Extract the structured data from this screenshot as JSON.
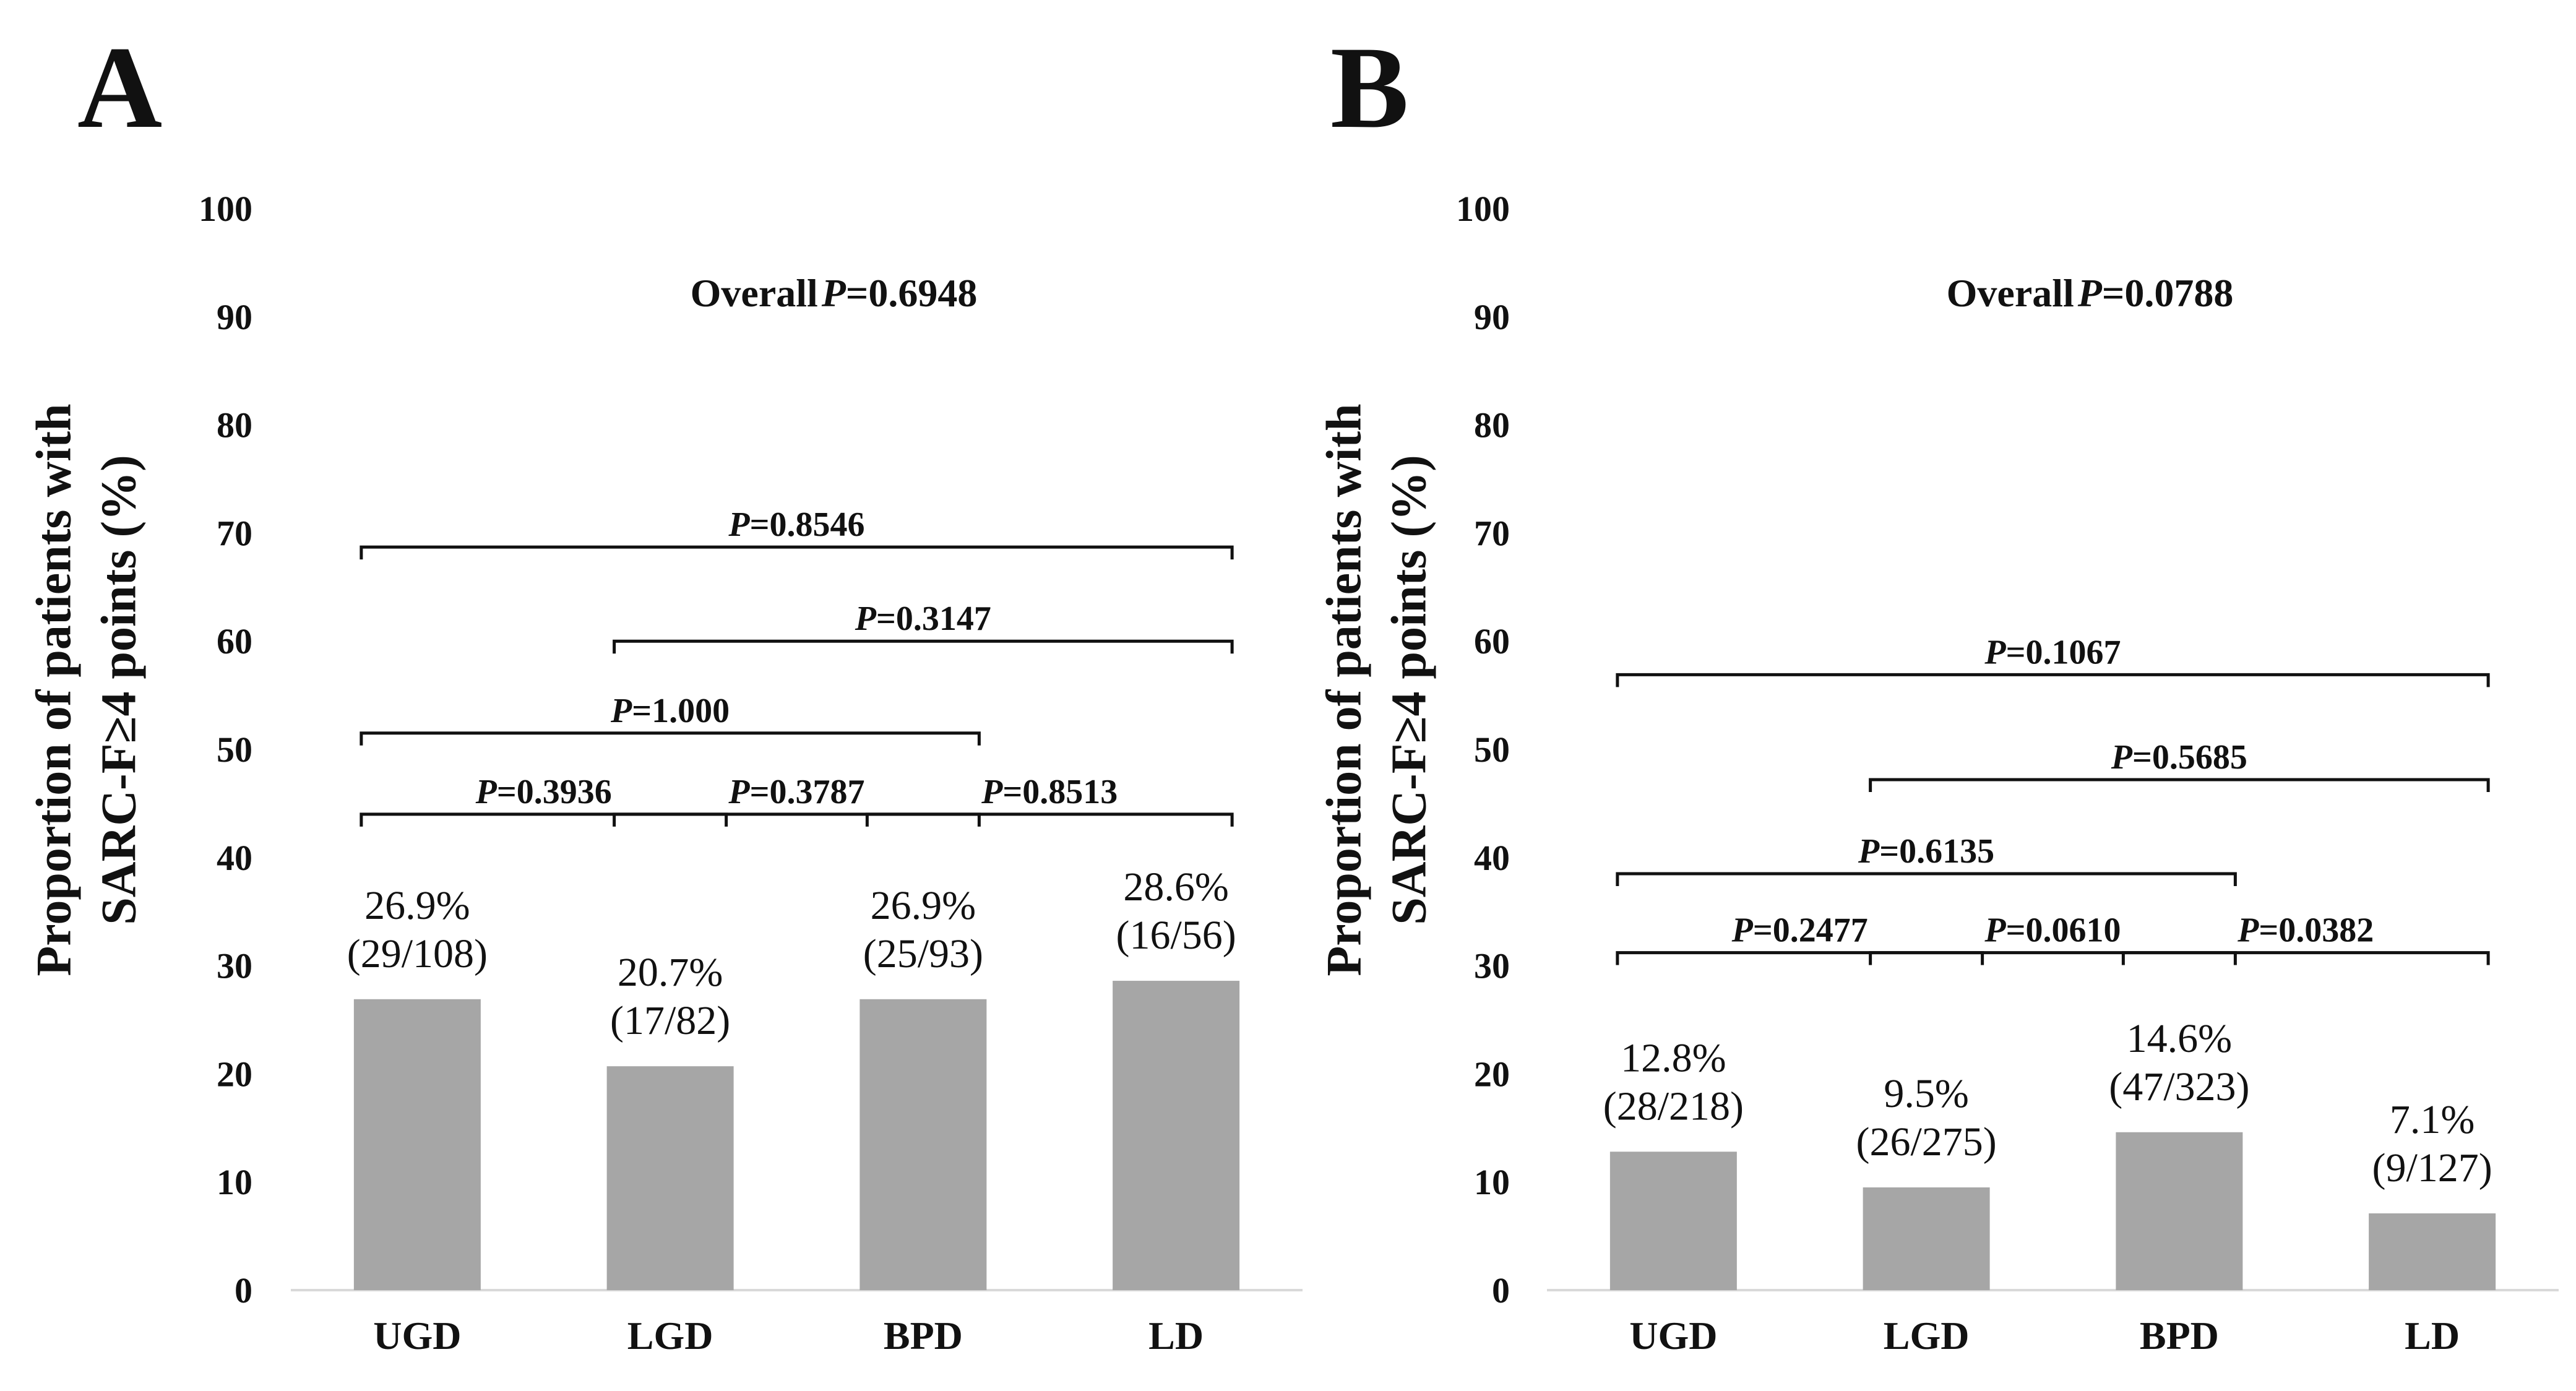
{
  "chart_data": [
    {
      "type": "bar",
      "panel": "A",
      "categories": [
        "UGD",
        "LGD",
        "BPD",
        "LD"
      ],
      "values": [
        26.9,
        20.7,
        26.9,
        28.6
      ],
      "value_labels": [
        "26.9%",
        "20.7%",
        "26.9%",
        "28.6%"
      ],
      "count_labels": [
        "(29/108)",
        "(17/82)",
        "(25/93)",
        "(16/56)"
      ],
      "ylabel_line1": "Proportion of patients with",
      "ylabel_line2": "SARC-F≥4 points (%)",
      "ylim": [
        0,
        100
      ],
      "yticks": [
        0,
        10,
        20,
        30,
        40,
        50,
        60,
        70,
        80,
        90,
        100
      ],
      "overall_label": "Overall",
      "overall_p_symbol": "P",
      "overall_p_value": "=0.6948",
      "color": "#a6a6a6",
      "comparisons": [
        {
          "from": 0,
          "to": 1,
          "y": 44,
          "p": "=0.3936"
        },
        {
          "from": 1,
          "to": 2,
          "y": 44,
          "p": "=0.3787"
        },
        {
          "from": 2,
          "to": 3,
          "y": 44,
          "p": "=0.8513"
        },
        {
          "from": 0,
          "to": 2,
          "y": 51.5,
          "p": "=1.000"
        },
        {
          "from": 1,
          "to": 3,
          "y": 60,
          "p": "=0.3147"
        },
        {
          "from": 0,
          "to": 3,
          "y": 68.7,
          "p": "=0.8546"
        }
      ]
    },
    {
      "type": "bar",
      "panel": "B",
      "categories": [
        "UGD",
        "LGD",
        "BPD",
        "LD"
      ],
      "values": [
        12.8,
        9.5,
        14.6,
        7.1
      ],
      "value_labels": [
        "12.8%",
        "9.5%",
        "14.6%",
        "7.1%"
      ],
      "count_labels": [
        "(28/218)",
        "(26/275)",
        "(47/323)",
        "(9/127)"
      ],
      "ylabel_line1": "Proportion of patients with",
      "ylabel_line2": "SARC-F≥4 points (%)",
      "ylim": [
        0,
        100
      ],
      "yticks": [
        0,
        10,
        20,
        30,
        40,
        50,
        60,
        70,
        80,
        90,
        100
      ],
      "overall_label": "Overall",
      "overall_p_symbol": "P",
      "overall_p_value": "=0.0788",
      "color": "#a6a6a6",
      "comparisons": [
        {
          "from": 0,
          "to": 1,
          "y": 31.2,
          "p": "=0.2477"
        },
        {
          "from": 1,
          "to": 2,
          "y": 31.2,
          "p": "=0.0610"
        },
        {
          "from": 2,
          "to": 3,
          "y": 31.2,
          "p": "=0.0382"
        },
        {
          "from": 0,
          "to": 2,
          "y": 38.5,
          "p": "=0.6135"
        },
        {
          "from": 1,
          "to": 3,
          "y": 47.2,
          "p": "=0.5685"
        },
        {
          "from": 0,
          "to": 3,
          "y": 56.9,
          "p": "=0.1067"
        }
      ]
    }
  ]
}
